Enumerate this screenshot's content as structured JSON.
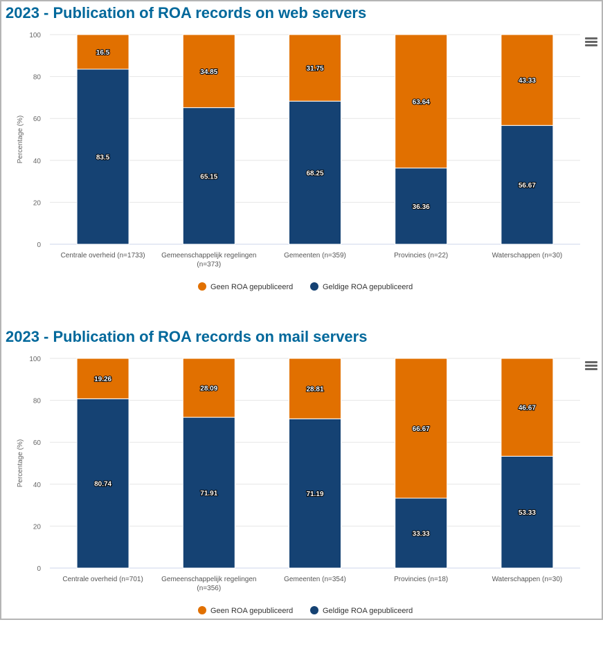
{
  "colors": {
    "geen": "#e17000",
    "geldige": "#154273",
    "title": "#01689b"
  },
  "chart_data": [
    {
      "type": "bar",
      "stacked": true,
      "title": "2023 - Publication of ROA records on web servers",
      "ylabel": "Percentage (%)",
      "ylim": [
        0,
        100
      ],
      "yticks": [
        0,
        20,
        40,
        60,
        80,
        100
      ],
      "grid": true,
      "legend_placement": "bottom",
      "categories": [
        [
          "Centrale overheid (n=1733)"
        ],
        [
          "Gemeenschappelijk regelingen",
          "(n=373)"
        ],
        [
          "Gemeenten (n=359)"
        ],
        [
          "Provincies (n=22)"
        ],
        [
          "Waterschappen (n=30)"
        ]
      ],
      "series": [
        {
          "name": "Geen ROA gepubliceerd",
          "color": "#e17000",
          "values": [
            16.5,
            34.85,
            31.75,
            63.64,
            43.33
          ]
        },
        {
          "name": "Geldige ROA gepubliceerd",
          "color": "#154273",
          "values": [
            83.5,
            65.15,
            68.25,
            36.36,
            56.67
          ]
        }
      ]
    },
    {
      "type": "bar",
      "stacked": true,
      "title": "2023 - Publication of ROA records on mail servers",
      "ylabel": "Percentage (%)",
      "ylim": [
        0,
        100
      ],
      "yticks": [
        0,
        20,
        40,
        60,
        80,
        100
      ],
      "grid": true,
      "legend_placement": "bottom",
      "categories": [
        [
          "Centrale overheid (n=701)"
        ],
        [
          "Gemeenschappelijk regelingen",
          "(n=356)"
        ],
        [
          "Gemeenten (n=354)"
        ],
        [
          "Provincies (n=18)"
        ],
        [
          "Waterschappen (n=30)"
        ]
      ],
      "series": [
        {
          "name": "Geen ROA gepubliceerd",
          "color": "#e17000",
          "values": [
            19.26,
            28.09,
            28.81,
            66.67,
            46.67
          ]
        },
        {
          "name": "Geldige ROA gepubliceerd",
          "color": "#154273",
          "values": [
            80.74,
            71.91,
            71.19,
            33.33,
            53.33
          ]
        }
      ]
    }
  ]
}
